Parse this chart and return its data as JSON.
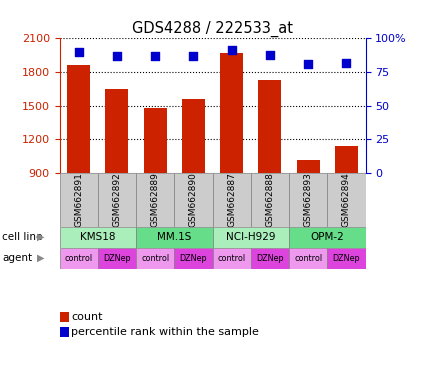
{
  "title": "GDS4288 / 222533_at",
  "samples": [
    "GSM662891",
    "GSM662892",
    "GSM662889",
    "GSM662890",
    "GSM662887",
    "GSM662888",
    "GSM662893",
    "GSM662894"
  ],
  "bar_values": [
    1860,
    1650,
    1480,
    1560,
    1970,
    1730,
    1010,
    1140
  ],
  "percentile_values": [
    90,
    87,
    87,
    87,
    91,
    88,
    81,
    82
  ],
  "ymin": 900,
  "ymax": 2100,
  "yticks": [
    900,
    1200,
    1500,
    1800,
    2100
  ],
  "y2min": 0,
  "y2max": 100,
  "y2ticks": [
    0,
    25,
    50,
    75,
    100
  ],
  "bar_color": "#cc2200",
  "dot_color": "#0000cc",
  "bar_width": 0.6,
  "cell_lines": [
    {
      "label": "KMS18",
      "start": 0,
      "end": 2,
      "color": "#aaeebb"
    },
    {
      "label": "MM.1S",
      "start": 2,
      "end": 4,
      "color": "#66dd88"
    },
    {
      "label": "NCI-H929",
      "start": 4,
      "end": 6,
      "color": "#aaeebb"
    },
    {
      "label": "OPM-2",
      "start": 6,
      "end": 8,
      "color": "#66dd88"
    }
  ],
  "agents": [
    {
      "label": "control",
      "color": "#ee99ee"
    },
    {
      "label": "DZNep",
      "color": "#dd44dd"
    }
  ],
  "ylabel_left_color": "#cc2200",
  "ylabel_right_color": "#0000cc",
  "background_color": "#ffffff",
  "cell_line_row_label": "cell line",
  "agent_row_label": "agent",
  "legend_count_label": "count",
  "legend_pct_label": "percentile rank within the sample",
  "sample_box_color": "#cccccc"
}
